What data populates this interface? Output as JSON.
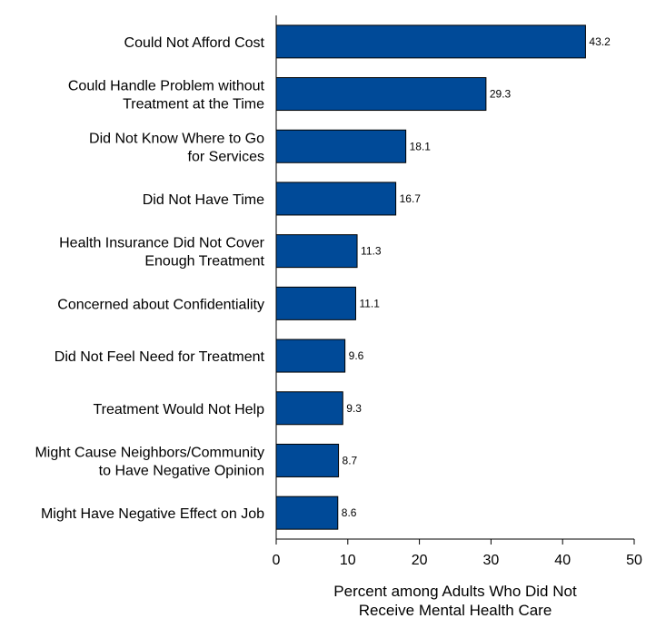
{
  "chart_data": {
    "type": "bar",
    "orientation": "horizontal",
    "categories": [
      [
        "Could Not Afford Cost"
      ],
      [
        "Could Handle Problem without",
        "Treatment at the Time"
      ],
      [
        "Did Not Know Where to Go",
        "for Services"
      ],
      [
        "Did Not Have Time"
      ],
      [
        "Health Insurance Did Not Cover",
        "Enough Treatment"
      ],
      [
        "Concerned about Confidentiality"
      ],
      [
        "Did Not Feel Need for Treatment"
      ],
      [
        "Treatment Would Not Help"
      ],
      [
        "Might Cause Neighbors/Community",
        "to Have Negative Opinion"
      ],
      [
        "Might Have Negative Effect on Job"
      ]
    ],
    "values": [
      43.2,
      29.3,
      18.1,
      16.7,
      11.3,
      11.1,
      9.6,
      9.3,
      8.7,
      8.6
    ],
    "value_labels": [
      "43.2",
      "29.3",
      "18.1",
      "16.7",
      "11.3",
      "11.1",
      "9.6",
      "9.3",
      "8.7",
      "8.6"
    ],
    "xlim": [
      0,
      50
    ],
    "xticks": [
      0,
      10,
      20,
      30,
      40,
      50
    ],
    "xtick_labels": [
      "0",
      "10",
      "20",
      "30",
      "40",
      "50"
    ],
    "xlabel": [
      "Percent among Adults Who Did Not",
      "Receive Mental Health Care"
    ],
    "title": "",
    "grid": false,
    "legend": "none",
    "bar_color": "#004a98",
    "bar_edge_color": "#000000"
  }
}
